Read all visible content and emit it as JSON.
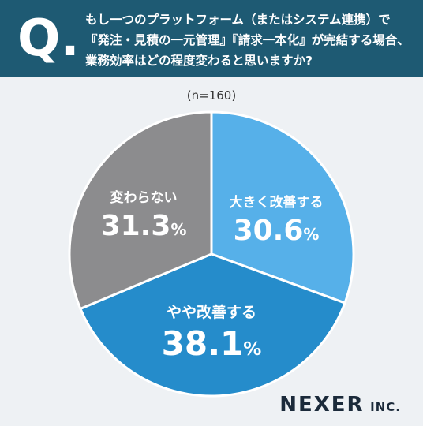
{
  "header": {
    "q_mark": "Q.",
    "question_lines": [
      "もし一つのプラットフォーム（またはシステム連携）で",
      "『発注・見積の一元管理』『請求一本化』が完結する場合、",
      "業務効率はどの程度変わると思いますか?"
    ]
  },
  "sample_size": "(n=160)",
  "chart_data": {
    "type": "pie",
    "title": "",
    "start": "12 o'clock",
    "direction": "clockwise",
    "slices": [
      {
        "label": "大きく改善する",
        "value": 30.6,
        "value_text": "30.6",
        "color": "#56b0e9"
      },
      {
        "label": "やや改善する",
        "value": 38.1,
        "value_text": "38.1",
        "color": "#258ccb"
      },
      {
        "label": "変わらない",
        "value": 31.3,
        "value_text": "31.3",
        "color": "#8c8c8e"
      }
    ],
    "unit": "%"
  },
  "logo": {
    "main": "NEXER",
    "suffix": "INC."
  }
}
